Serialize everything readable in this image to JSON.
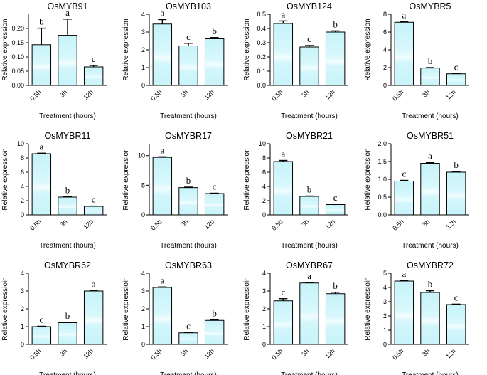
{
  "chart_data": [
    {
      "type": "bar",
      "title": "OsMYB91",
      "ylabel": "Relative expression",
      "xlabel": "Treatment (hours)",
      "categories": [
        "0.5h",
        "3h",
        "12h"
      ],
      "values": [
        0.143,
        0.176,
        0.065
      ],
      "errors": [
        0.058,
        0.057,
        0.005
      ],
      "letters": [
        "b",
        "a",
        "c"
      ],
      "ylim": [
        0,
        0.25
      ],
      "yticks": [
        0.0,
        0.05,
        0.1,
        0.15,
        0.2
      ],
      "ytick_labels": [
        "0.00",
        "0.05",
        "0.10",
        "0.15",
        "0.20"
      ]
    },
    {
      "type": "bar",
      "title": "OsMYB103",
      "ylabel": "Relative expression",
      "xlabel": "Treatment (hours)",
      "categories": [
        "0.5h",
        "3h",
        "12h"
      ],
      "values": [
        3.45,
        2.22,
        2.62
      ],
      "errors": [
        0.25,
        0.15,
        0.07
      ],
      "letters": [
        "a",
        "c",
        "b"
      ],
      "ylim": [
        0,
        4
      ],
      "yticks": [
        0,
        1,
        2,
        3,
        4
      ],
      "ytick_labels": [
        "0",
        "1",
        "2",
        "3",
        "4"
      ]
    },
    {
      "type": "bar",
      "title": "OsMYB124",
      "ylabel": "Relative expression",
      "xlabel": "Treatment (hours)",
      "categories": [
        "0.5h",
        "3h",
        "12h"
      ],
      "values": [
        0.435,
        0.27,
        0.375
      ],
      "errors": [
        0.018,
        0.01,
        0.008
      ],
      "letters": [
        "a",
        "c",
        "b"
      ],
      "ylim": [
        0,
        0.5
      ],
      "yticks": [
        0.0,
        0.1,
        0.2,
        0.3,
        0.4,
        0.5
      ],
      "ytick_labels": [
        "0.0",
        "0.1",
        "0.2",
        "0.3",
        "0.4",
        "0.5"
      ]
    },
    {
      "type": "bar",
      "title": "OsMYBR5",
      "ylabel": "Relative expression",
      "xlabel": "Treatment (hours)",
      "categories": [
        "0.5h",
        "3h",
        "12h"
      ],
      "values": [
        7.1,
        1.95,
        1.3
      ],
      "errors": [
        0.08,
        0.05,
        0.04
      ],
      "letters": [
        "a",
        "b",
        "c"
      ],
      "ylim": [
        0,
        8
      ],
      "yticks": [
        0,
        2,
        4,
        6,
        8
      ],
      "ytick_labels": [
        "0",
        "2",
        "4",
        "6",
        "8"
      ]
    },
    {
      "type": "bar",
      "title": "OsMYBR11",
      "ylabel": "Relative expression",
      "xlabel": "Treatment (hours)",
      "categories": [
        "0.5h",
        "3h",
        "12h"
      ],
      "values": [
        8.6,
        2.5,
        1.2
      ],
      "errors": [
        0.07,
        0.06,
        0.04
      ],
      "letters": [
        "a",
        "b",
        "c"
      ],
      "ylim": [
        0,
        10
      ],
      "yticks": [
        0,
        2,
        4,
        6,
        8,
        10
      ],
      "ytick_labels": [
        "0",
        "2",
        "4",
        "6",
        "8",
        "10"
      ]
    },
    {
      "type": "bar",
      "title": "OsMYBR17",
      "ylabel": "Relative expression",
      "xlabel": "Treatment (hours)",
      "categories": [
        "0.5h",
        "3h",
        "12h"
      ],
      "values": [
        9.7,
        4.6,
        3.6
      ],
      "errors": [
        0.1,
        0.08,
        0.06
      ],
      "letters": [
        "a",
        "b",
        "c"
      ],
      "ylim": [
        0,
        12
      ],
      "yticks": [
        0,
        5,
        10
      ],
      "ytick_labels": [
        "0",
        "5",
        "10"
      ]
    },
    {
      "type": "bar",
      "title": "OsMYBR21",
      "ylabel": "Relative expression",
      "xlabel": "Treatment (hours)",
      "categories": [
        "0.5h",
        "3h",
        "12h"
      ],
      "values": [
        7.5,
        2.6,
        1.45
      ],
      "errors": [
        0.15,
        0.05,
        0.04
      ],
      "letters": [
        "a",
        "b",
        "c"
      ],
      "ylim": [
        0,
        10
      ],
      "yticks": [
        0,
        2,
        4,
        6,
        8,
        10
      ],
      "ytick_labels": [
        "0",
        "2",
        "4",
        "6",
        "8",
        "10"
      ]
    },
    {
      "type": "bar",
      "title": "OsMYBR51",
      "ylabel": "Relative expression",
      "xlabel": "Treatment (hours)",
      "categories": [
        "0.5h",
        "3h",
        "12h"
      ],
      "values": [
        0.95,
        1.45,
        1.2
      ],
      "errors": [
        0.02,
        0.02,
        0.02
      ],
      "letters": [
        "c",
        "a",
        "b"
      ],
      "ylim": [
        0,
        2.0
      ],
      "yticks": [
        0.0,
        0.5,
        1.0,
        1.5,
        2.0
      ],
      "ytick_labels": [
        "0.0",
        "0.5",
        "1.0",
        "1.5",
        "2.0"
      ]
    },
    {
      "type": "bar",
      "title": "OsMYBR62",
      "ylabel": "Relative expressioin",
      "xlabel": "Treatment (hours)",
      "categories": [
        "0.5h",
        "3h",
        "12h"
      ],
      "values": [
        1.0,
        1.22,
        3.0
      ],
      "errors": [
        0.02,
        0.03,
        0.02
      ],
      "letters": [
        "c",
        "b",
        "a"
      ],
      "ylim": [
        0,
        4
      ],
      "yticks": [
        0,
        1,
        2,
        3,
        4
      ],
      "ytick_labels": [
        "0",
        "1",
        "2",
        "3",
        "4"
      ]
    },
    {
      "type": "bar",
      "title": "OsMYBR63",
      "ylabel": "Relative expressioin",
      "xlabel": "Treatment (hours)",
      "categories": [
        "0.5h",
        "3h",
        "12h"
      ],
      "values": [
        3.2,
        0.65,
        1.35
      ],
      "errors": [
        0.03,
        0.02,
        0.03
      ],
      "letters": [
        "a",
        "c",
        "b"
      ],
      "ylim": [
        0,
        4
      ],
      "yticks": [
        0,
        1,
        2,
        3,
        4
      ],
      "ytick_labels": [
        "0",
        "1",
        "2",
        "3",
        "4"
      ]
    },
    {
      "type": "bar",
      "title": "OsMYBR67",
      "ylabel": "Relative expressioin",
      "xlabel": "Treatment (hours)",
      "categories": [
        "0.5h",
        "3h",
        "12h"
      ],
      "values": [
        2.45,
        3.45,
        2.85
      ],
      "errors": [
        0.12,
        0.03,
        0.08
      ],
      "letters": [
        "c",
        "a",
        "b"
      ],
      "ylim": [
        0,
        4
      ],
      "yticks": [
        0,
        1,
        2,
        3,
        4
      ],
      "ytick_labels": [
        "0",
        "1",
        "2",
        "3",
        "4"
      ]
    },
    {
      "type": "bar",
      "title": "OsMYBR72",
      "ylabel": "Relative expressioin",
      "xlabel": "Treatment (hours)",
      "categories": [
        "0.5h",
        "3h",
        "12h"
      ],
      "values": [
        4.45,
        3.65,
        2.8
      ],
      "errors": [
        0.05,
        0.12,
        0.03
      ],
      "letters": [
        "a",
        "b",
        "c"
      ],
      "ylim": [
        0,
        5
      ],
      "yticks": [
        0,
        1,
        2,
        3,
        4,
        5
      ],
      "ytick_labels": [
        "0",
        "1",
        "2",
        "3",
        "4",
        "5"
      ]
    }
  ],
  "colors": {
    "bar_light": "#e4fbff",
    "bar_mid": "#c6f3f9",
    "axis": "#000000"
  }
}
